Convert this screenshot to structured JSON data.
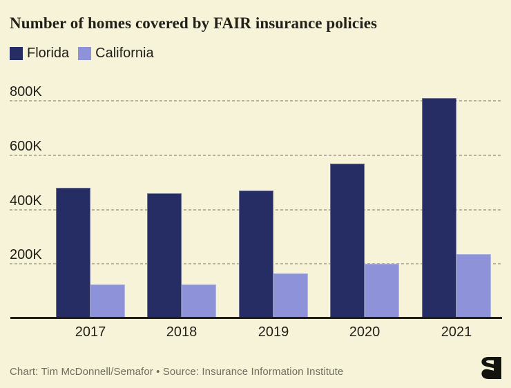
{
  "header": {
    "title": "Number of homes covered by FAIR insurance policies"
  },
  "legend": {
    "items": [
      {
        "label": "Florida",
        "color": "#252D64"
      },
      {
        "label": "California",
        "color": "#8D92D9"
      }
    ]
  },
  "footer": {
    "attribution": "Chart: Tim McDonnell/Semafor • Source: Insurance Information Institute",
    "logo": "semafor-logo"
  },
  "chart_data": {
    "type": "bar",
    "title": "Number of homes covered by FAIR insurance policies",
    "categories": [
      "2017",
      "2018",
      "2019",
      "2020",
      "2021"
    ],
    "series": [
      {
        "name": "Florida",
        "color": "#252D64",
        "values": [
          480000,
          460000,
          470000,
          570000,
          810000
        ]
      },
      {
        "name": "California",
        "color": "#8D92D9",
        "values": [
          125000,
          125000,
          165000,
          200000,
          235000
        ]
      }
    ],
    "y_ticks": [
      {
        "label": "200K",
        "value": 200000
      },
      {
        "label": "400K",
        "value": 400000
      },
      {
        "label": "600K",
        "value": 600000
      },
      {
        "label": "800K",
        "value": 800000
      }
    ],
    "ylim": [
      0,
      840000
    ],
    "grid": "horizontal-dashed",
    "legend_position": "top-left",
    "unit": "homes"
  },
  "colors": {
    "background": "#F7F3D8",
    "florida": "#252D64",
    "california": "#8D92D9",
    "gridline": "#B5B19B",
    "axis": "#1E1E16",
    "text": "#21211A",
    "muted_text": "#6F6E5C",
    "logo": "#14140E"
  }
}
